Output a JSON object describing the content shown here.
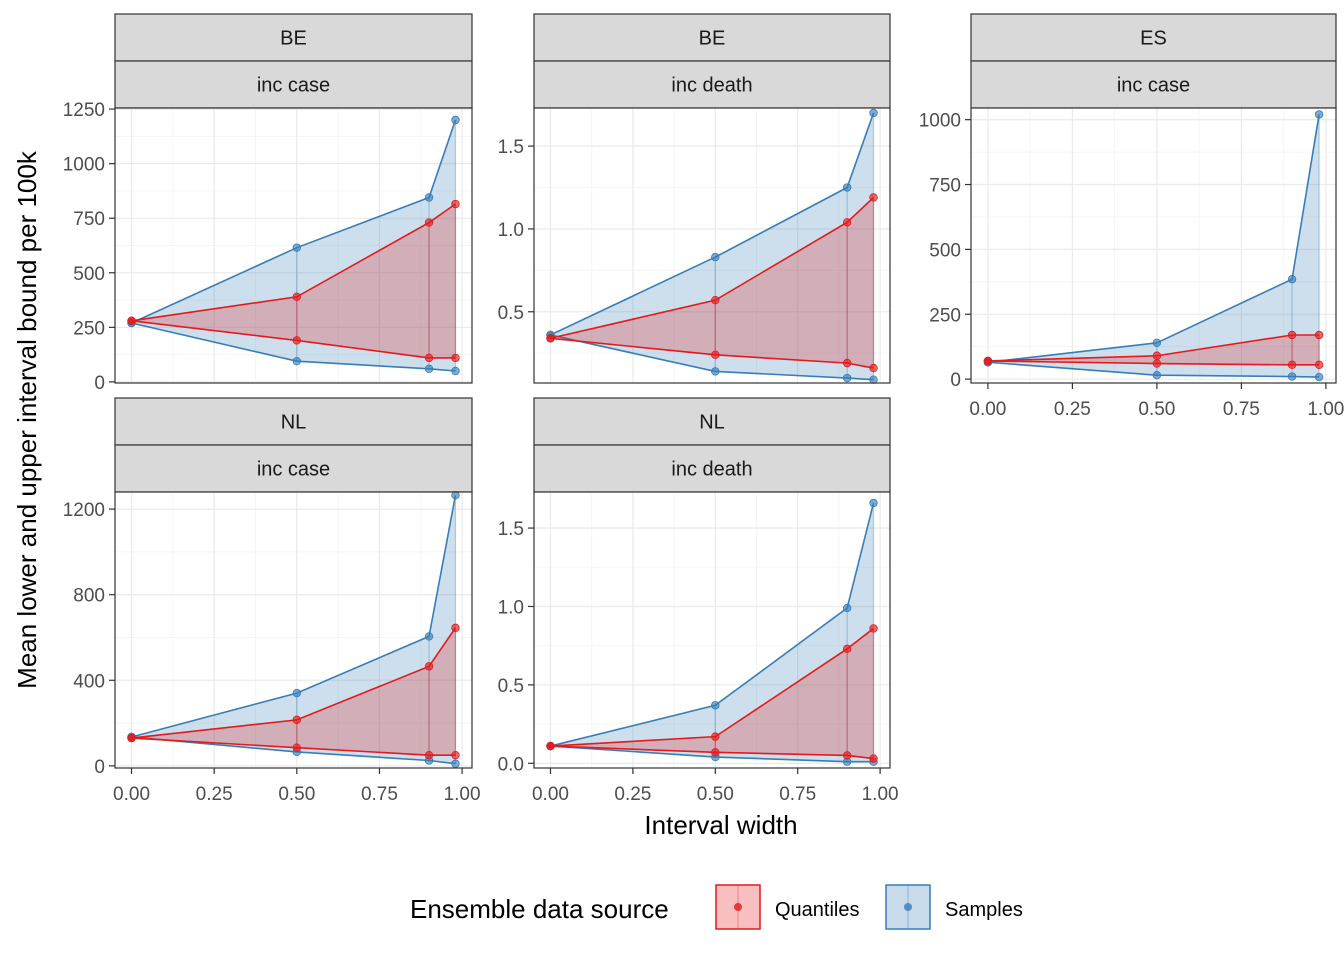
{
  "colors": {
    "Quantiles": "#E41A1C",
    "Samples": "#377EB8",
    "strip_fill": "#D9D9D9",
    "grid_major": "#EBEBEB",
    "grid_minor": "#F5F5F5"
  },
  "axes": {
    "xlabel": "Interval width",
    "ylabel": "Mean lower and upper interval bound per 100k"
  },
  "legend": {
    "title": "Ensemble data source",
    "placement": "bottom",
    "entries": [
      "Quantiles",
      "Samples"
    ]
  },
  "chart_data": [
    {
      "type": "area",
      "facet": [
        "BE",
        "inc case"
      ],
      "xlim": [
        -0.05,
        1.03
      ],
      "ylim": [
        -5,
        1255
      ],
      "x_ticks": [
        0,
        0.25,
        0.5,
        0.75,
        1
      ],
      "x_tick_labels": [
        "0.00",
        "0.25",
        "0.50",
        "0.75",
        "1.00"
      ],
      "y_ticks": [
        0,
        250,
        500,
        750,
        1000,
        1250
      ],
      "y_tick_labels": [
        "0",
        "250",
        "500",
        "750",
        "1000",
        "1250"
      ],
      "show_x_axis": false,
      "x": [
        0,
        0.5,
        0.9,
        0.98
      ],
      "series": [
        {
          "name": "Quantiles",
          "lower": [
            280,
            190,
            110,
            110
          ],
          "upper": [
            280,
            390,
            730,
            815
          ]
        },
        {
          "name": "Samples",
          "lower": [
            270,
            95,
            60,
            50
          ],
          "upper": [
            270,
            615,
            845,
            1200
          ]
        }
      ]
    },
    {
      "type": "area",
      "facet": [
        "BE",
        "inc death"
      ],
      "xlim": [
        -0.05,
        1.03
      ],
      "ylim": [
        0.07,
        1.73
      ],
      "x_ticks": [
        0,
        0.25,
        0.5,
        0.75,
        1
      ],
      "x_tick_labels": [
        "0.00",
        "0.25",
        "0.50",
        "0.75",
        "1.00"
      ],
      "y_ticks": [
        0.5,
        1.0,
        1.5
      ],
      "y_tick_labels": [
        "0.5",
        "1.0",
        "1.5"
      ],
      "show_x_axis": false,
      "x": [
        0,
        0.5,
        0.9,
        0.98
      ],
      "series": [
        {
          "name": "Quantiles",
          "lower": [
            0.34,
            0.24,
            0.19,
            0.16
          ],
          "upper": [
            0.34,
            0.57,
            1.04,
            1.19
          ]
        },
        {
          "name": "Samples",
          "lower": [
            0.36,
            0.14,
            0.1,
            0.09
          ],
          "upper": [
            0.36,
            0.83,
            1.25,
            1.7
          ]
        }
      ]
    },
    {
      "type": "area",
      "facet": [
        "ES",
        "inc case"
      ],
      "xlim": [
        -0.05,
        1.03
      ],
      "ylim": [
        -15,
        1045
      ],
      "x_ticks": [
        0,
        0.25,
        0.5,
        0.75,
        1
      ],
      "x_tick_labels": [
        "0.00",
        "0.25",
        "0.50",
        "0.75",
        "1.00"
      ],
      "y_ticks": [
        0,
        250,
        500,
        750,
        1000
      ],
      "y_tick_labels": [
        "0",
        "250",
        "500",
        "750",
        "1000"
      ],
      "show_x_axis": true,
      "x": [
        0,
        0.5,
        0.9,
        0.98
      ],
      "series": [
        {
          "name": "Quantiles",
          "lower": [
            70,
            60,
            55,
            55
          ],
          "upper": [
            70,
            90,
            170,
            170
          ]
        },
        {
          "name": "Samples",
          "lower": [
            65,
            15,
            10,
            8
          ],
          "upper": [
            65,
            140,
            385,
            1020
          ]
        }
      ]
    },
    {
      "type": "area",
      "facet": [
        "NL",
        "inc case"
      ],
      "xlim": [
        -0.05,
        1.03
      ],
      "ylim": [
        -10,
        1280
      ],
      "x_ticks": [
        0,
        0.25,
        0.5,
        0.75,
        1
      ],
      "x_tick_labels": [
        "0.00",
        "0.25",
        "0.50",
        "0.75",
        "1.00"
      ],
      "y_ticks": [
        0,
        400,
        800,
        1200
      ],
      "y_tick_labels": [
        "0",
        "400",
        "800",
        "1200"
      ],
      "show_x_axis": true,
      "x": [
        0,
        0.5,
        0.9,
        0.98
      ],
      "series": [
        {
          "name": "Quantiles",
          "lower": [
            130,
            85,
            50,
            50
          ],
          "upper": [
            130,
            215,
            465,
            645
          ]
        },
        {
          "name": "Samples",
          "lower": [
            135,
            65,
            25,
            10
          ],
          "upper": [
            135,
            340,
            605,
            1265
          ]
        }
      ]
    },
    {
      "type": "area",
      "facet": [
        "NL",
        "inc death"
      ],
      "xlim": [
        -0.05,
        1.03
      ],
      "ylim": [
        -0.03,
        1.73
      ],
      "x_ticks": [
        0,
        0.25,
        0.5,
        0.75,
        1
      ],
      "x_tick_labels": [
        "0.00",
        "0.25",
        "0.50",
        "0.75",
        "1.00"
      ],
      "y_ticks": [
        0,
        0.5,
        1.0,
        1.5
      ],
      "y_tick_labels": [
        "0.0",
        "0.5",
        "1.0",
        "1.5"
      ],
      "show_x_axis": true,
      "x": [
        0,
        0.5,
        0.9,
        0.98
      ],
      "series": [
        {
          "name": "Quantiles",
          "lower": [
            0.11,
            0.07,
            0.05,
            0.03
          ],
          "upper": [
            0.11,
            0.17,
            0.73,
            0.86
          ]
        },
        {
          "name": "Samples",
          "lower": [
            0.11,
            0.04,
            0.01,
            0.01
          ],
          "upper": [
            0.11,
            0.37,
            0.99,
            1.66
          ]
        }
      ]
    }
  ]
}
